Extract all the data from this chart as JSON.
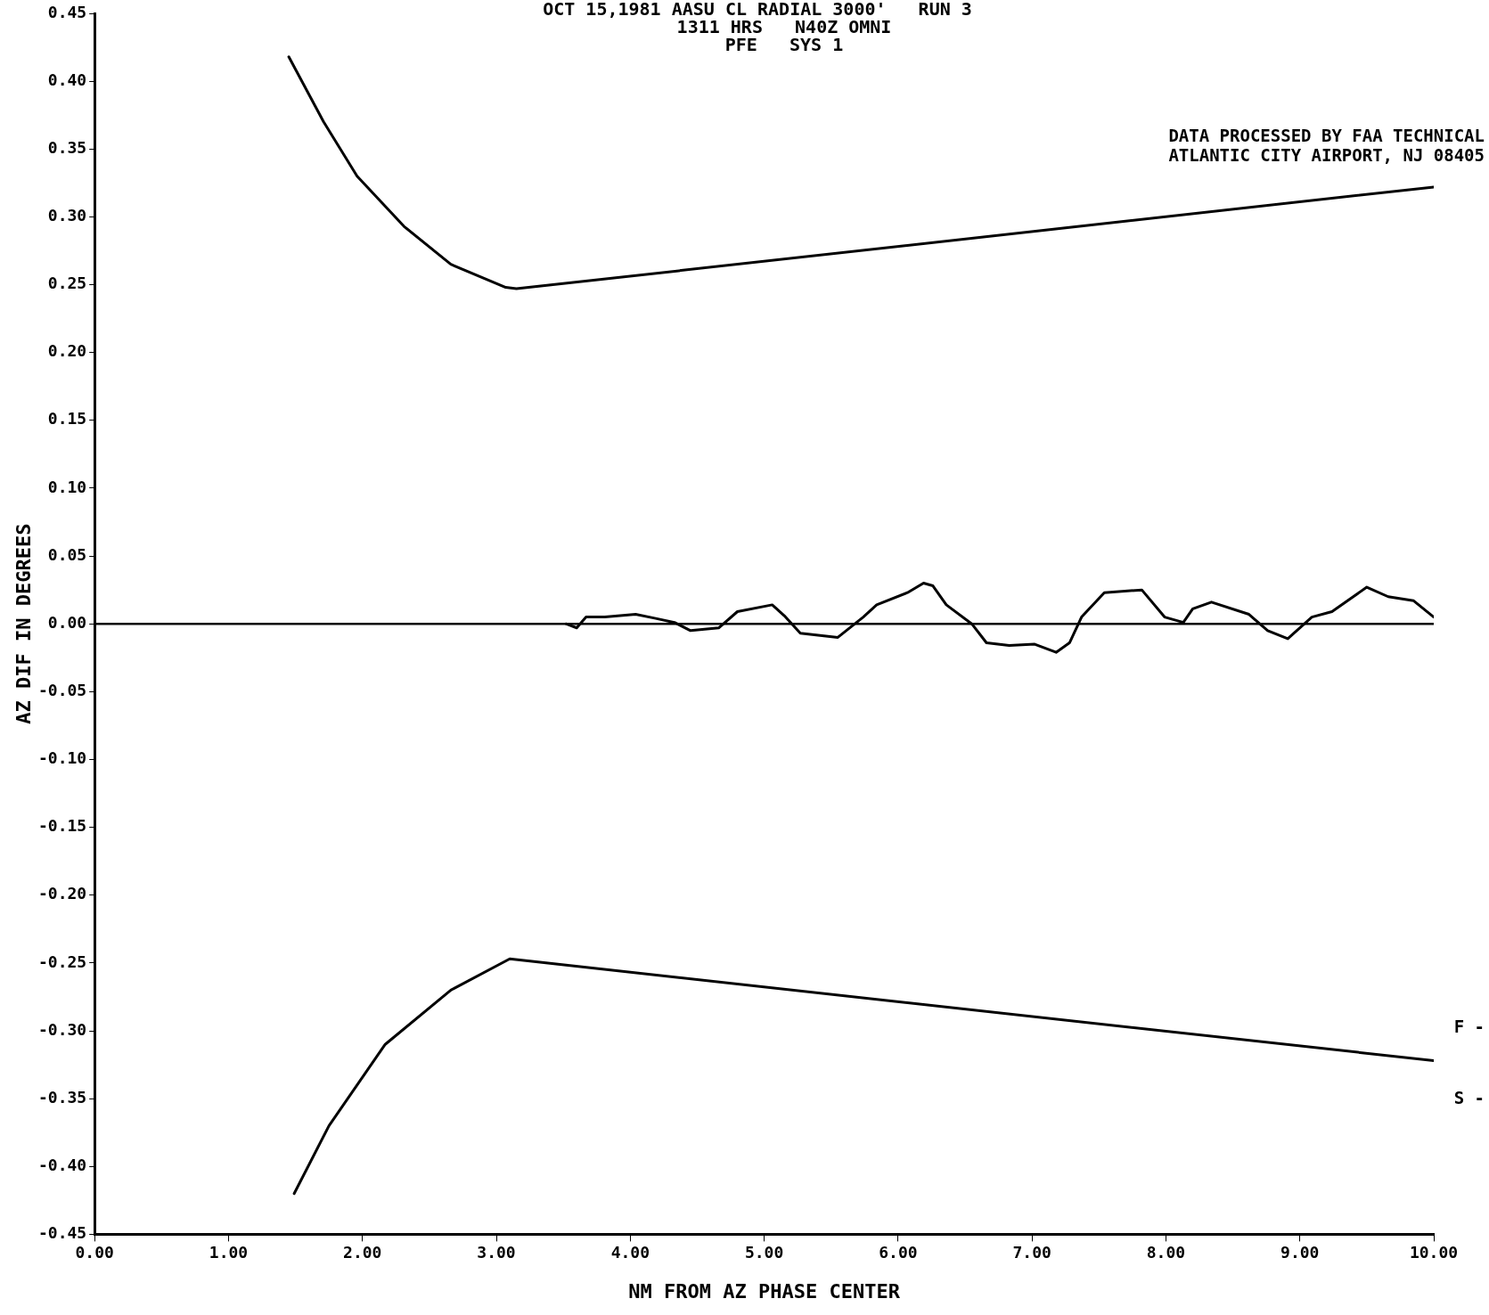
{
  "chart_data": {
    "type": "line",
    "title": "OCT 15,1981 AASU CL RADIAL 3000'   RUN 3",
    "subtitle": "1311 HRS   N40Z OMNI\nPFE   SYS 1",
    "xlabel": "NM FROM AZ PHASE CENTER",
    "ylabel": "AZ DIF IN DEGREES",
    "annotations": [
      "DATA PROCESSED BY FAA TECHNICAL",
      "ATLANTIC CITY AIRPORT, NJ 08405",
      "F -",
      "S -"
    ],
    "xlim": [
      0,
      10
    ],
    "xticks": [
      {
        "value": 0,
        "label": "0.00"
      },
      {
        "value": 1,
        "label": "1.00"
      },
      {
        "value": 2,
        "label": "2.00"
      },
      {
        "value": 3,
        "label": "3.00"
      },
      {
        "value": 4,
        "label": "4.00"
      },
      {
        "value": 5,
        "label": "5.00"
      },
      {
        "value": 6,
        "label": "6.00"
      },
      {
        "value": 7,
        "label": "7.00"
      },
      {
        "value": 8,
        "label": "8.00"
      },
      {
        "value": 9,
        "label": "9.00"
      },
      {
        "value": 10,
        "label": "10.00"
      }
    ],
    "ylim": [
      -0.45,
      0.45
    ],
    "yticks": [
      {
        "value": -0.45,
        "label": "-0.45"
      },
      {
        "value": -0.4,
        "label": "-0.40"
      },
      {
        "value": -0.35,
        "label": "-0.35"
      },
      {
        "value": -0.3,
        "label": "-0.30"
      },
      {
        "value": -0.25,
        "label": "-0.25"
      },
      {
        "value": -0.2,
        "label": "-0.20"
      },
      {
        "value": -0.15,
        "label": "-0.15"
      },
      {
        "value": -0.1,
        "label": "-0.10"
      },
      {
        "value": -0.05,
        "label": "-0.05"
      },
      {
        "value": 0,
        "label": "0.00"
      },
      {
        "value": 0.05,
        "label": "0.05"
      },
      {
        "value": 0.1,
        "label": "0.10"
      },
      {
        "value": 0.15,
        "label": "0.15"
      },
      {
        "value": 0.2,
        "label": "0.20"
      },
      {
        "value": 0.25,
        "label": "0.25"
      },
      {
        "value": 0.3,
        "label": "0.30"
      },
      {
        "value": 0.35,
        "label": "0.35"
      },
      {
        "value": 0.4,
        "label": "0.40"
      },
      {
        "value": 0.45,
        "label": "0.45"
      }
    ],
    "grid": false,
    "legend": false,
    "marker": "none",
    "line_style": "solid",
    "ref_lines": [
      {
        "axis": "y",
        "value": 0,
        "color": "#000000"
      }
    ],
    "series": [
      {
        "color": "#000000",
        "x": [
          1.45,
          1.71,
          1.96,
          2.31,
          2.66,
          3.07,
          3.15,
          10
        ],
        "values": [
          0.418,
          0.37,
          0.33,
          0.293,
          0.265,
          0.248,
          0.247,
          0.322
        ]
      },
      {
        "color": "#000000",
        "x": [
          1.49,
          1.75,
          2.17,
          2.66,
          3.1,
          10
        ],
        "values": [
          -0.42,
          -0.37,
          -0.31,
          -0.27,
          -0.247,
          -0.322
        ]
      },
      {
        "color": "#000000",
        "x": [
          3.52,
          3.6,
          3.67,
          3.81,
          4.04,
          4.19,
          4.33,
          4.45,
          4.66,
          4.8,
          5.06,
          5.15,
          5.27,
          5.55,
          5.74,
          5.84,
          6.07,
          6.19,
          6.26,
          6.36,
          6.55,
          6.66,
          6.83,
          7.02,
          7.18,
          7.28,
          7.37,
          7.54,
          7.82,
          7.99,
          8.13,
          8.2,
          8.34,
          8.62,
          8.76,
          8.91,
          9.09,
          9.24,
          9.5,
          9.66,
          9.85,
          10
        ],
        "values": [
          0,
          -0.003,
          0.005,
          0.005,
          0.007,
          0.004,
          0.001,
          -0.005,
          -0.003,
          0.009,
          0.014,
          0.006,
          -0.007,
          -0.01,
          0.005,
          0.014,
          0.023,
          0.03,
          0.028,
          0.014,
          0,
          -0.014,
          -0.016,
          -0.015,
          -0.021,
          -0.014,
          0.005,
          0.023,
          0.025,
          0.005,
          0.001,
          0.011,
          0.016,
          0.007,
          -0.005,
          -0.011,
          0.005,
          0.009,
          0.027,
          0.02,
          0.017,
          0.005
        ]
      }
    ]
  }
}
